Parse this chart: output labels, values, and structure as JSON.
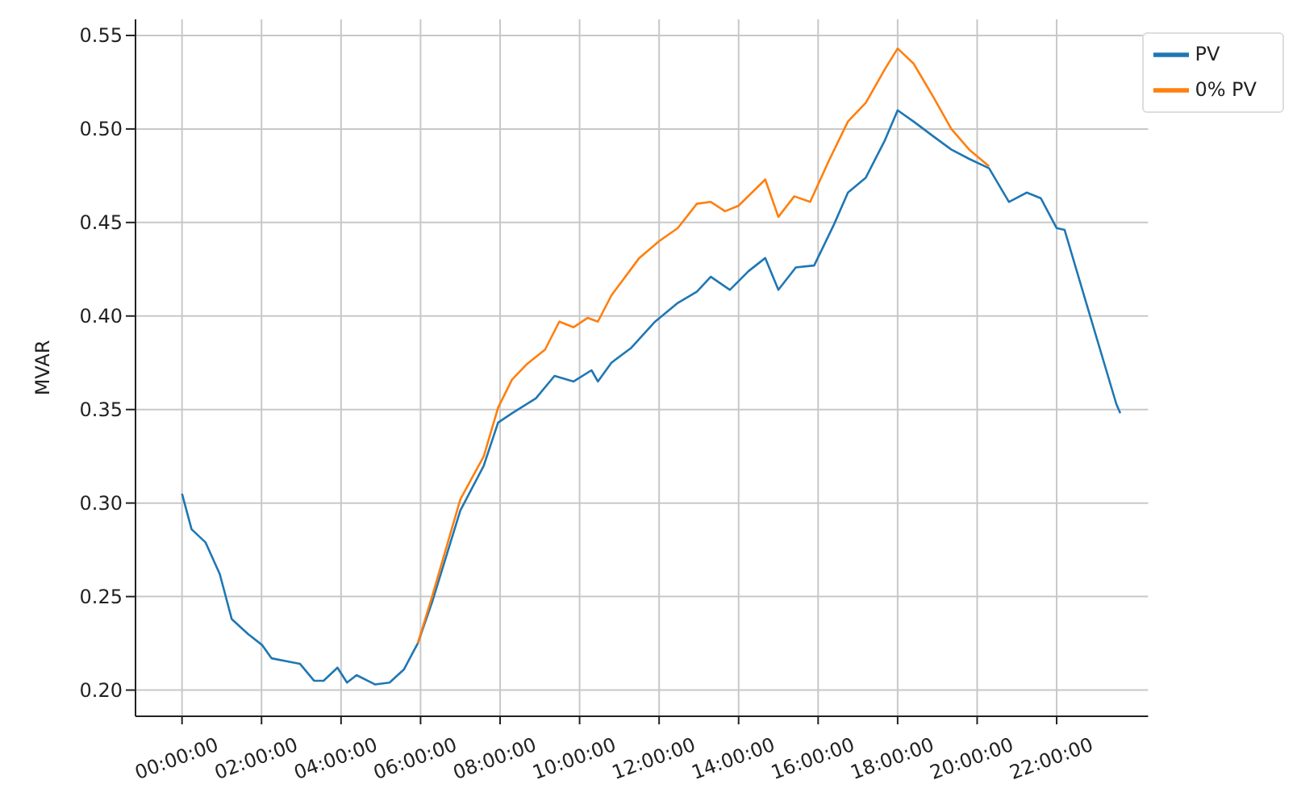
{
  "chart_data": {
    "type": "line",
    "ylabel": "MVAR",
    "xlim": [
      -1.17,
      24.3
    ],
    "ylim": [
      0.186,
      0.5586
    ],
    "xticks": [
      {
        "value": 0,
        "label": "00:00:00"
      },
      {
        "value": 2,
        "label": "02:00:00"
      },
      {
        "value": 4,
        "label": "04:00:00"
      },
      {
        "value": 6,
        "label": "06:00:00"
      },
      {
        "value": 8,
        "label": "08:00:00"
      },
      {
        "value": 10,
        "label": "10:00:00"
      },
      {
        "value": 12,
        "label": "12:00:00"
      },
      {
        "value": 14,
        "label": "14:00:00"
      },
      {
        "value": 16,
        "label": "16:00:00"
      },
      {
        "value": 18,
        "label": "18:00:00"
      },
      {
        "value": 20,
        "label": "20:00:00"
      },
      {
        "value": 22,
        "label": "22:00:00"
      }
    ],
    "yticks": [
      {
        "value": 0.2,
        "label": "0.20"
      },
      {
        "value": 0.25,
        "label": "0.25"
      },
      {
        "value": 0.3,
        "label": "0.30"
      },
      {
        "value": 0.35,
        "label": "0.35"
      },
      {
        "value": 0.4,
        "label": "0.40"
      },
      {
        "value": 0.45,
        "label": "0.45"
      },
      {
        "value": 0.5,
        "label": "0.50"
      },
      {
        "value": 0.55,
        "label": "0.55"
      }
    ],
    "grid": true,
    "legend": "top right",
    "marker": "none",
    "line_style": "solid",
    "series": [
      {
        "name": "PV",
        "color": "#1f77b4",
        "x": [
          0,
          0.24,
          0.59,
          0.95,
          1.25,
          1.66,
          2.02,
          2.25,
          2.73,
          2.97,
          3.32,
          3.56,
          3.91,
          4.15,
          4.39,
          4.86,
          5.22,
          5.58,
          5.93,
          6.29,
          7.0,
          7.59,
          7.95,
          8.3,
          8.9,
          9.37,
          9.85,
          10.3,
          10.46,
          10.8,
          11.3,
          11.9,
          12.47,
          12.95,
          13.3,
          13.78,
          14.25,
          14.67,
          15.0,
          15.44,
          15.9,
          16.4,
          16.75,
          17.2,
          17.68,
          18.0,
          18.4,
          18.9,
          19.35,
          19.8,
          20.3,
          20.8,
          21.25,
          21.6,
          22.0,
          22.2,
          22.8,
          23.5,
          23.6
        ],
        "values": [
          0.305,
          0.286,
          0.279,
          0.262,
          0.238,
          0.23,
          0.224,
          0.217,
          0.215,
          0.214,
          0.205,
          0.205,
          0.212,
          0.204,
          0.208,
          0.203,
          0.204,
          0.211,
          0.225,
          0.247,
          0.296,
          0.32,
          0.343,
          0.348,
          0.356,
          0.368,
          0.365,
          0.371,
          0.365,
          0.375,
          0.383,
          0.397,
          0.407,
          0.413,
          0.421,
          0.414,
          0.424,
          0.431,
          0.414,
          0.426,
          0.427,
          0.449,
          0.466,
          0.474,
          0.494,
          0.51,
          0.504,
          0.496,
          0.489,
          0.484,
          0.479,
          0.461,
          0.466,
          0.463,
          0.447,
          0.446,
          0.403,
          0.353,
          0.348
        ]
      },
      {
        "name": "0% PV",
        "color": "#ff7f0e",
        "x": [
          5.93,
          6.29,
          7.0,
          7.59,
          7.95,
          8.3,
          8.66,
          9.13,
          9.49,
          9.85,
          10.2,
          10.46,
          10.8,
          11.5,
          12.0,
          12.47,
          12.95,
          13.3,
          13.66,
          14.0,
          14.67,
          15.0,
          15.4,
          15.8,
          16.27,
          16.75,
          17.2,
          17.68,
          18.0,
          18.4,
          18.9,
          19.35,
          19.8,
          20.3
        ],
        "values": [
          0.225,
          0.25,
          0.302,
          0.325,
          0.351,
          0.366,
          0.374,
          0.382,
          0.397,
          0.394,
          0.399,
          0.397,
          0.411,
          0.431,
          0.44,
          0.447,
          0.46,
          0.461,
          0.456,
          0.459,
          0.473,
          0.453,
          0.464,
          0.461,
          0.483,
          0.504,
          0.514,
          0.532,
          0.543,
          0.535,
          0.517,
          0.5,
          0.489,
          0.48
        ]
      }
    ]
  }
}
